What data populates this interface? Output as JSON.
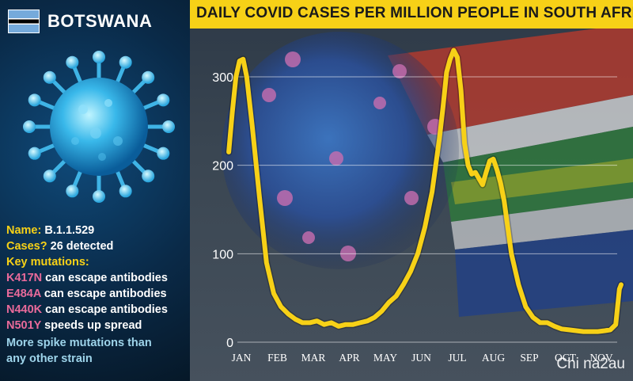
{
  "sidebar": {
    "country": "BOTSWANA",
    "name_label": "Name:",
    "name_value": "B.1.1.529",
    "cases_label": "Cases?",
    "cases_value": "26 detected",
    "key_label": "Key mutations:",
    "mutations": [
      {
        "code": "K417N",
        "text": "can escape antibodies"
      },
      {
        "code": "E484A",
        "text": "can escape antibodies"
      },
      {
        "code": "N440K",
        "text": "can escape antibodies"
      },
      {
        "code": "N501Y",
        "text": "speeds up spread"
      }
    ],
    "note_line1": "More spike mutations than",
    "note_line2": "any other strain"
  },
  "watermark": "Chi na2au",
  "colors": {
    "accent": "#f7d117",
    "line": "#f7d117",
    "mutation_code": "#e96a9a",
    "note": "#9ed4ea"
  },
  "chart_data": {
    "type": "line",
    "title": "DAILY COVID CASES PER MILLION PEOPLE IN SOUTH AFRICA",
    "xlabel": "",
    "ylabel": "",
    "categories": [
      "JAN",
      "FEB",
      "MAR",
      "APR",
      "MAY",
      "JUN",
      "JUL",
      "AUG",
      "SEP",
      "OCT",
      "NOV"
    ],
    "yticks": [
      0,
      100,
      200,
      300
    ],
    "ylim": [
      0,
      330
    ],
    "xlim": [
      0,
      10.6
    ],
    "grid": true,
    "series": [
      {
        "x": [
          -0.35,
          -0.25,
          -0.15,
          -0.05,
          0.05,
          0.15,
          0.3,
          0.5,
          0.7,
          0.9,
          1.1,
          1.3,
          1.5,
          1.7,
          1.9,
          2.1,
          2.3,
          2.5,
          2.7,
          2.9,
          3.1,
          3.3,
          3.5,
          3.7,
          3.9,
          4.1,
          4.3,
          4.5,
          4.7,
          4.9,
          5.1,
          5.3,
          5.5,
          5.6,
          5.7,
          5.8,
          5.9,
          6.0,
          6.1,
          6.2,
          6.3,
          6.4,
          6.5,
          6.6,
          6.7,
          6.8,
          6.9,
          7.0,
          7.1,
          7.2,
          7.3,
          7.4,
          7.5,
          7.7,
          7.9,
          8.1,
          8.3,
          8.5,
          8.7,
          8.9,
          9.1,
          9.3,
          9.5,
          9.7,
          9.9,
          10.1,
          10.25,
          10.4,
          10.5,
          10.55
        ],
        "y": [
          215,
          260,
          300,
          318,
          320,
          300,
          245,
          165,
          90,
          55,
          40,
          32,
          26,
          22,
          22,
          24,
          20,
          22,
          18,
          20,
          20,
          22,
          24,
          28,
          35,
          45,
          52,
          65,
          80,
          100,
          130,
          170,
          230,
          265,
          305,
          320,
          330,
          322,
          285,
          225,
          200,
          190,
          192,
          185,
          178,
          192,
          205,
          207,
          195,
          180,
          160,
          130,
          100,
          65,
          40,
          28,
          22,
          22,
          18,
          15,
          14,
          13,
          12,
          12,
          12,
          13,
          14,
          20,
          60,
          65
        ]
      }
    ]
  }
}
